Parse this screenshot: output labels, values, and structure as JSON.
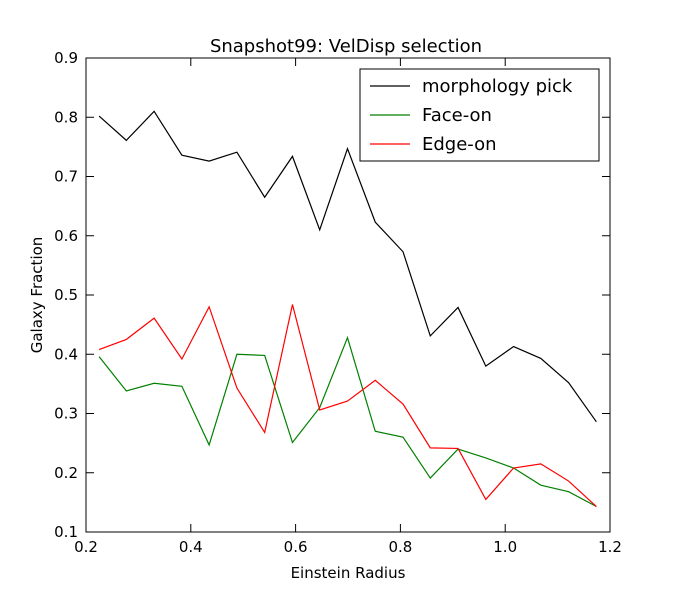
{
  "chart_data": {
    "type": "line",
    "title": "Snapshot99: VelDisp selection",
    "xlabel": "Einstein Radius",
    "ylabel": "Galaxy Fraction",
    "xlim": [
      0.2,
      1.2
    ],
    "ylim": [
      0.1,
      0.9
    ],
    "xticks": [
      "0.2",
      "0.4",
      "0.6",
      "0.8",
      "1.0",
      "1.2"
    ],
    "yticks": [
      "0.1",
      "0.2",
      "0.3",
      "0.4",
      "0.5",
      "0.6",
      "0.7",
      "0.8",
      "0.9"
    ],
    "grid": false,
    "legend_position": "top-right",
    "x": [
      0.225,
      0.277,
      0.33,
      0.383,
      0.435,
      0.488,
      0.541,
      0.594,
      0.646,
      0.699,
      0.752,
      0.805,
      0.857,
      0.91,
      0.963,
      1.016,
      1.068,
      1.121,
      1.174
    ],
    "series": [
      {
        "name": "morphology pick",
        "color": "#000000",
        "values": [
          0.802,
          0.761,
          0.81,
          0.736,
          0.726,
          0.741,
          0.665,
          0.734,
          0.61,
          0.747,
          0.623,
          0.573,
          0.431,
          0.479,
          0.38,
          0.413,
          0.393,
          0.352,
          0.286
        ]
      },
      {
        "name": "Face-on",
        "color": "#008000",
        "values": [
          0.396,
          0.338,
          0.351,
          0.346,
          0.247,
          0.4,
          0.398,
          0.251,
          0.31,
          0.428,
          0.27,
          0.26,
          0.191,
          0.24,
          0.225,
          0.208,
          0.179,
          0.168,
          0.143
        ]
      },
      {
        "name": "Edge-on",
        "color": "#ff0000",
        "values": [
          0.408,
          0.425,
          0.461,
          0.392,
          0.48,
          0.343,
          0.268,
          0.484,
          0.306,
          0.321,
          0.356,
          0.316,
          0.242,
          0.241,
          0.155,
          0.208,
          0.215,
          0.186,
          0.143
        ]
      }
    ]
  }
}
